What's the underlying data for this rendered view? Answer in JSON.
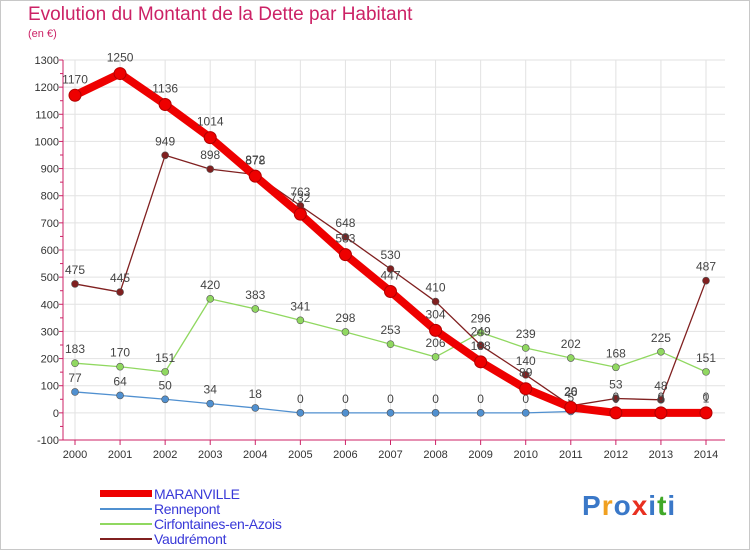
{
  "title": "Evolution du Montant de la Dette par Habitant",
  "unit": "(en €)",
  "brand": {
    "text": "Proxiti",
    "colors": [
      "#3a78c8",
      "#f0a020",
      "#3a78c8",
      "#e83020",
      "#3a78c8",
      "#40a828",
      "#3a78c8"
    ]
  },
  "chart_data": {
    "type": "line",
    "x": [
      2000,
      2001,
      2002,
      2003,
      2004,
      2005,
      2006,
      2007,
      2008,
      2009,
      2010,
      2011,
      2012,
      2013,
      2014
    ],
    "ylim": [
      -100,
      1300
    ],
    "yticks": [
      -100,
      0,
      100,
      200,
      300,
      400,
      500,
      600,
      700,
      800,
      900,
      1000,
      1100,
      1200,
      1300
    ],
    "grid": true,
    "legend_position": "bottom-left",
    "series": [
      {
        "name": "MARANVILLE",
        "color": "#ee0000",
        "values": [
          1170,
          1250,
          1136,
          1014,
          872,
          732,
          583,
          447,
          304,
          188,
          89,
          20,
          0,
          0,
          0
        ],
        "labels": [
          "1170",
          "1250",
          "1136",
          "1014",
          "872",
          "732",
          "583",
          "447",
          "304",
          "188",
          "89",
          "20",
          "0",
          "0",
          "0"
        ]
      },
      {
        "name": "Rennepont",
        "color": "#5090d0",
        "values": [
          77,
          64,
          50,
          34,
          18,
          0,
          0,
          0,
          0,
          0,
          0,
          5,
          0,
          0,
          1
        ],
        "labels": [
          "77",
          "64",
          "50",
          "34",
          "18",
          "0",
          "0",
          "0",
          "0",
          "0",
          "0",
          "5",
          "0",
          "0",
          "1"
        ]
      },
      {
        "name": "Cirfontaines-en-Azois",
        "color": "#90d860",
        "values": [
          183,
          170,
          151,
          420,
          383,
          341,
          298,
          253,
          206,
          296,
          239,
          202,
          168,
          225,
          151
        ],
        "labels": [
          "183",
          "170",
          "151",
          "420",
          "383",
          "341",
          "298",
          "253",
          "206",
          "296",
          "239",
          "202",
          "168",
          "225",
          "151"
        ]
      },
      {
        "name": "Vaudrémont",
        "color": "#802020",
        "values": [
          475,
          445,
          949,
          898,
          878,
          763,
          648,
          530,
          410,
          249,
          140,
          26,
          53,
          48,
          487
        ],
        "labels": [
          "475",
          "445",
          "949",
          "898",
          "878",
          "763",
          "648",
          "530",
          "410",
          "249",
          "140",
          "26",
          "53",
          "48",
          "487"
        ]
      }
    ]
  }
}
